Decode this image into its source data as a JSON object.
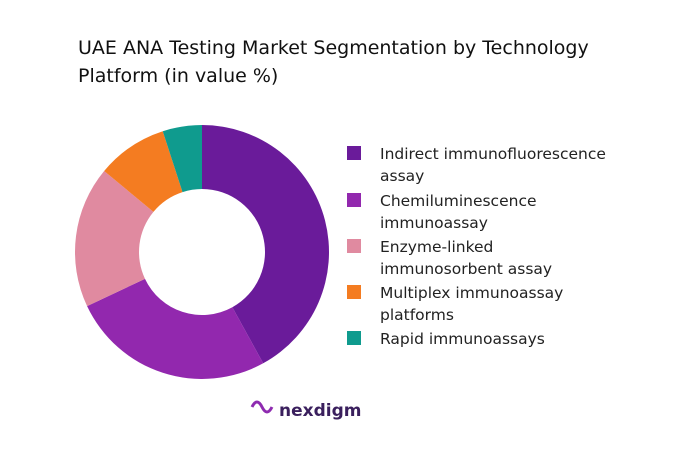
{
  "chart_data": {
    "type": "donut",
    "title": "UAE ANA Testing Market Segmentation by Technology Platform (in value %)",
    "categories": [
      "Indirect immunofluorescence assay",
      "Chemiluminescence immunoassay",
      "Enzyme-linked immunosorbent assay",
      "Multiplex immunoassay platforms",
      "Rapid immunoassays"
    ],
    "values": [
      42,
      26,
      18,
      9,
      5
    ],
    "colors": [
      "#6a1b9a",
      "#9228ae",
      "#e08aa0",
      "#f47c21",
      "#0f9b8e"
    ],
    "legend": "right"
  },
  "brand": "nexdigm"
}
